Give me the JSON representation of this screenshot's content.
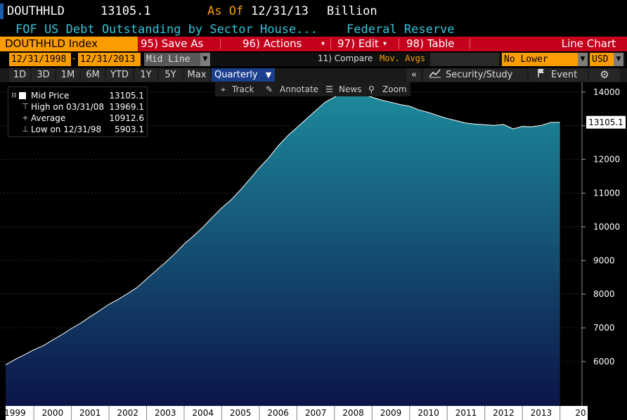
{
  "header": {
    "ticker": "DOUTHHLD",
    "last_value": "13105.1",
    "as_of_label": "As Of",
    "as_of_date": "12/31/13",
    "units": "Billion",
    "description": "FOF US Debt Outstanding by Sector House...",
    "source": "Federal Reserve"
  },
  "menubar": {
    "title": "DOUTHHLD Index",
    "save_as": "95) Save As",
    "actions": "96) Actions",
    "edit": "97) Edit",
    "table": "98) Table",
    "chart_type": "Line Chart"
  },
  "controls": {
    "start_date": "12/31/1998",
    "dash": "-",
    "end_date": "12/31/2013",
    "price_type": "Mid Line",
    "compare": "11) Compare",
    "mov_avgs": "Mov. Avgs",
    "lower_chart": "No Lower Chart",
    "currency": "USD"
  },
  "periods": {
    "tabs": [
      "1D",
      "3D",
      "1M",
      "6M",
      "YTD",
      "1Y",
      "5Y",
      "Max"
    ],
    "frequency": "Quarterly",
    "collapse": "«",
    "security_study": "Security/Study",
    "event": "Event"
  },
  "chart_tools": {
    "track": "Track",
    "annotate": "Annotate",
    "news": "News",
    "zoom": "Zoom"
  },
  "legend": {
    "mid_label": "Mid Price",
    "mid_value": "13105.1",
    "high_label": "High on 03/31/08",
    "high_value": "13969.1",
    "avg_label": "Average",
    "avg_value": "10912.6",
    "low_label": "Low on 12/31/98",
    "low_value": "5903.1"
  },
  "colors": {
    "fill_top": "#1d8a9b",
    "fill_bottom": "#0c1448",
    "line": "#ffffff",
    "accent_orange": "#fb9c00",
    "bar_red": "#c4001c"
  },
  "chart_data": {
    "type": "area",
    "title": "DOUTHHLD Index",
    "ylabel": "",
    "xlabel": "",
    "ylim": [
      5100,
      14500
    ],
    "xlim": [
      1998.9,
      2014.2
    ],
    "last_label": "13105.1",
    "yticks": [
      6000,
      7000,
      8000,
      9000,
      10000,
      11000,
      12000,
      13000,
      14000
    ],
    "ytick_labels": [
      "6000",
      "7000",
      "8000",
      "9000",
      "10000",
      "11000",
      "12000",
      "",
      "14000"
    ],
    "xtick_labels": [
      "1999",
      "2000",
      "2001",
      "2002",
      "2003",
      "2004",
      "2005",
      "2006",
      "2007",
      "2008",
      "2009",
      "2010",
      "2011",
      "2012",
      "2013",
      "20"
    ],
    "x": [
      1999.0,
      1999.25,
      1999.5,
      1999.75,
      2000.0,
      2000.25,
      2000.5,
      2000.75,
      2001.0,
      2001.25,
      2001.5,
      2001.75,
      2002.0,
      2002.25,
      2002.5,
      2002.75,
      2003.0,
      2003.25,
      2003.5,
      2003.75,
      2004.0,
      2004.25,
      2004.5,
      2004.75,
      2005.0,
      2005.25,
      2005.5,
      2005.75,
      2006.0,
      2006.25,
      2006.5,
      2006.75,
      2007.0,
      2007.25,
      2007.5,
      2007.75,
      2008.0,
      2008.25,
      2008.5,
      2008.75,
      2009.0,
      2009.25,
      2009.5,
      2009.75,
      2010.0,
      2010.25,
      2010.5,
      2010.75,
      2011.0,
      2011.25,
      2011.5,
      2011.75,
      2012.0,
      2012.25,
      2012.5,
      2012.75,
      2013.0,
      2013.25,
      2013.5,
      2013.75
    ],
    "values": [
      5903.1,
      6060,
      6200,
      6350,
      6470,
      6640,
      6800,
      6980,
      7140,
      7330,
      7510,
      7700,
      7850,
      8020,
      8200,
      8450,
      8700,
      8940,
      9200,
      9490,
      9730,
      9990,
      10280,
      10560,
      10800,
      11100,
      11420,
      11750,
      12050,
      12400,
      12700,
      12950,
      13200,
      13450,
      13700,
      13850,
      13990,
      13969.1,
      13930,
      13850,
      13760,
      13700,
      13630,
      13580,
      13470,
      13400,
      13300,
      13220,
      13150,
      13080,
      13050,
      13030,
      13010,
      13040,
      12910,
      12980,
      12970,
      13010,
      13100,
      13105.1
    ]
  }
}
